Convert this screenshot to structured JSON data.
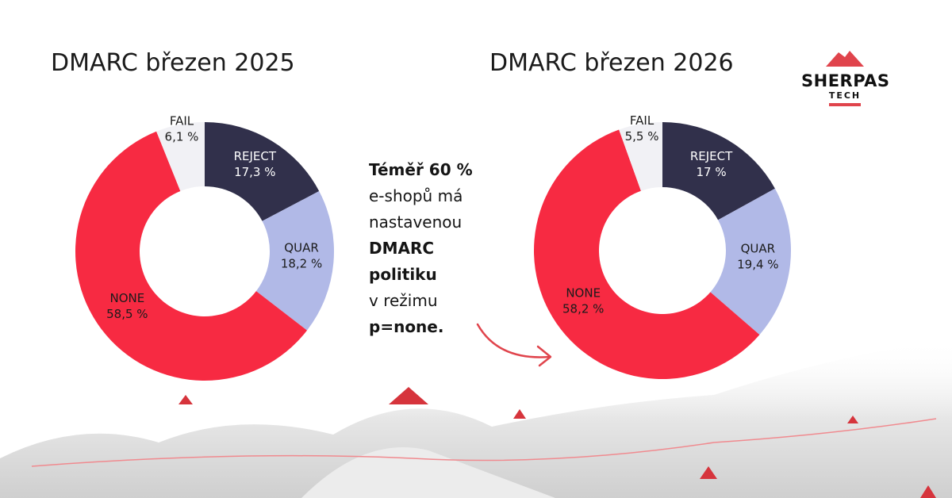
{
  "logo": {
    "name": "SHERPAS",
    "sub": "TECH"
  },
  "message": {
    "line1": "Téměř 60 %",
    "line2": "e-shopů má",
    "line3": "nastavenou",
    "line4": "DMARC",
    "line5": "politiku",
    "line6": "v režimu",
    "line7": "p=none."
  },
  "colors": {
    "REJECT": "#31304b",
    "QUAR": "#b1b9e7",
    "NONE": "#f72a42",
    "FAIL": "#f1f1f5",
    "accent": "#e0444c"
  },
  "chart_data": [
    {
      "type": "pie",
      "variant": "donut",
      "title": "DMARC březen 2025",
      "categories": [
        "REJECT",
        "QUAR",
        "NONE",
        "FAIL"
      ],
      "values": [
        17.3,
        18.2,
        58.5,
        6.1
      ],
      "labels": [
        "17,3 %",
        "18,2 %",
        "58,5 %",
        "6,1 %"
      ]
    },
    {
      "type": "pie",
      "variant": "donut",
      "title": "DMARC březen 2026",
      "categories": [
        "REJECT",
        "QUAR",
        "NONE",
        "FAIL"
      ],
      "values": [
        17,
        19.4,
        58.2,
        5.5
      ],
      "labels": [
        "17 %",
        "19,4 %",
        "58,2 %",
        "5,5 %"
      ]
    }
  ]
}
